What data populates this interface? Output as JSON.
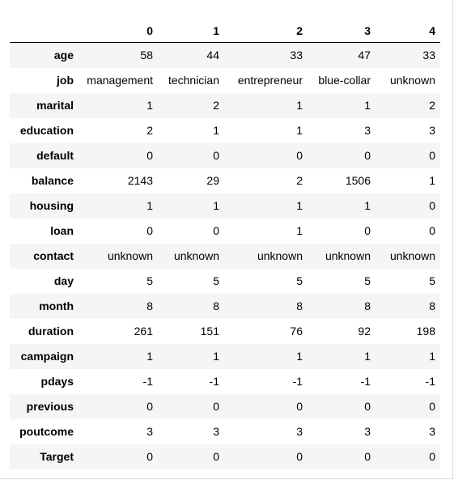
{
  "table": {
    "columns": [
      "0",
      "1",
      "2",
      "3",
      "4"
    ],
    "rows": [
      {
        "label": "age",
        "values": [
          "58",
          "44",
          "33",
          "47",
          "33"
        ]
      },
      {
        "label": "job",
        "values": [
          "management",
          "technician",
          "entrepreneur",
          "blue-collar",
          "unknown"
        ]
      },
      {
        "label": "marital",
        "values": [
          "1",
          "2",
          "1",
          "1",
          "2"
        ]
      },
      {
        "label": "education",
        "values": [
          "2",
          "1",
          "1",
          "3",
          "3"
        ]
      },
      {
        "label": "default",
        "values": [
          "0",
          "0",
          "0",
          "0",
          "0"
        ]
      },
      {
        "label": "balance",
        "values": [
          "2143",
          "29",
          "2",
          "1506",
          "1"
        ]
      },
      {
        "label": "housing",
        "values": [
          "1",
          "1",
          "1",
          "1",
          "0"
        ]
      },
      {
        "label": "loan",
        "values": [
          "0",
          "0",
          "1",
          "0",
          "0"
        ]
      },
      {
        "label": "contact",
        "values": [
          "unknown",
          "unknown",
          "unknown",
          "unknown",
          "unknown"
        ]
      },
      {
        "label": "day",
        "values": [
          "5",
          "5",
          "5",
          "5",
          "5"
        ]
      },
      {
        "label": "month",
        "values": [
          "8",
          "8",
          "8",
          "8",
          "8"
        ]
      },
      {
        "label": "duration",
        "values": [
          "261",
          "151",
          "76",
          "92",
          "198"
        ]
      },
      {
        "label": "campaign",
        "values": [
          "1",
          "1",
          "1",
          "1",
          "1"
        ]
      },
      {
        "label": "pdays",
        "values": [
          "-1",
          "-1",
          "-1",
          "-1",
          "-1"
        ]
      },
      {
        "label": "previous",
        "values": [
          "0",
          "0",
          "0",
          "0",
          "0"
        ]
      },
      {
        "label": "poutcome",
        "values": [
          "3",
          "3",
          "3",
          "3",
          "3"
        ]
      },
      {
        "label": "Target",
        "values": [
          "0",
          "0",
          "0",
          "0",
          "0"
        ]
      }
    ]
  }
}
